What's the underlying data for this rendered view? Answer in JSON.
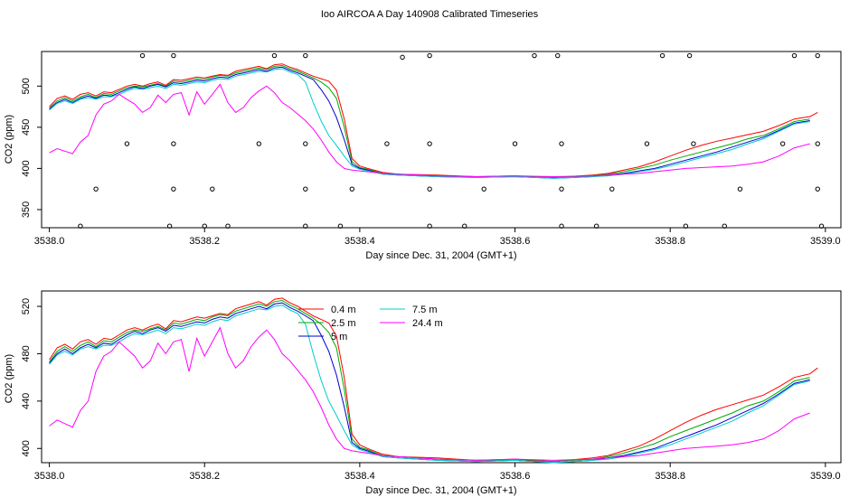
{
  "title": "Ioo AIRCOA A  Day 140908  Calibrated Timeseries",
  "chart_data": [
    {
      "type": "line",
      "xlabel": "Day since Dec. 31, 2004 (GMT+1)",
      "ylabel": "CO2 (ppm)",
      "xlim": [
        3537.99,
        3539.02
      ],
      "ylim": [
        328,
        542
      ],
      "xticks": [
        "3538.0",
        "3538.2",
        "3538.4",
        "3538.6",
        "3538.8",
        "3539.0"
      ],
      "xtick_values": [
        3538.0,
        3538.2,
        3538.4,
        3538.6,
        3538.8,
        3539.0
      ],
      "yticks": [
        "350",
        "400",
        "450",
        "500"
      ],
      "ytick_values": [
        350,
        400,
        450,
        500
      ],
      "series": [
        {
          "color": "#FF0000",
          "x": [
            3538.0,
            3538.01,
            3538.02,
            3538.03,
            3538.04,
            3538.05,
            3538.06,
            3538.07,
            3538.08,
            3538.09,
            3538.1,
            3538.11,
            3538.12,
            3538.13,
            3538.14,
            3538.15,
            3538.16,
            3538.17,
            3538.18,
            3538.19,
            3538.2,
            3538.21,
            3538.22,
            3538.23,
            3538.24,
            3538.25,
            3538.26,
            3538.27,
            3538.28,
            3538.29,
            3538.3,
            3538.31,
            3538.32,
            3538.33,
            3538.34,
            3538.35,
            3538.36,
            3538.37,
            3538.38,
            3538.39,
            3538.4,
            3538.41,
            3538.43,
            3538.45,
            3538.5,
            3538.55,
            3538.6,
            3538.65,
            3538.7,
            3538.72,
            3538.74,
            3538.76,
            3538.78,
            3538.8,
            3538.82,
            3538.84,
            3538.86,
            3538.88,
            3538.9,
            3538.92,
            3538.94,
            3538.96,
            3538.98,
            3538.99
          ],
          "y": [
            475,
            485,
            488,
            484,
            490,
            492,
            488,
            493,
            492,
            496,
            500,
            502,
            500,
            503,
            505,
            501,
            508,
            507,
            509,
            511,
            510,
            512,
            514,
            513,
            518,
            520,
            522,
            524,
            521,
            526,
            527,
            523,
            520,
            516,
            512,
            509,
            506,
            495,
            460,
            412,
            403,
            400,
            395,
            393,
            392,
            390,
            391,
            389,
            392,
            394,
            398,
            402,
            408,
            415,
            422,
            428,
            433,
            437,
            441,
            445,
            452,
            460,
            463,
            468
          ]
        },
        {
          "color": "#00AA00",
          "x": [
            3538.0,
            3538.01,
            3538.02,
            3538.03,
            3538.04,
            3538.05,
            3538.06,
            3538.07,
            3538.08,
            3538.09,
            3538.1,
            3538.11,
            3538.12,
            3538.13,
            3538.14,
            3538.15,
            3538.16,
            3538.17,
            3538.18,
            3538.19,
            3538.2,
            3538.21,
            3538.22,
            3538.23,
            3538.24,
            3538.25,
            3538.26,
            3538.27,
            3538.28,
            3538.29,
            3538.3,
            3538.31,
            3538.32,
            3538.33,
            3538.34,
            3538.35,
            3538.36,
            3538.37,
            3538.38,
            3538.39,
            3538.4,
            3538.41,
            3538.43,
            3538.45,
            3538.5,
            3538.55,
            3538.6,
            3538.65,
            3538.7,
            3538.72,
            3538.74,
            3538.76,
            3538.78,
            3538.8,
            3538.82,
            3538.84,
            3538.86,
            3538.88,
            3538.9,
            3538.92,
            3538.94,
            3538.96,
            3538.98
          ],
          "y": [
            473,
            482,
            486,
            482,
            487,
            490,
            486,
            491,
            490,
            494,
            498,
            500,
            499,
            501,
            503,
            500,
            506,
            505,
            507,
            509,
            508,
            511,
            513,
            512,
            516,
            518,
            520,
            522,
            520,
            524,
            525,
            521,
            518,
            514,
            510,
            505,
            498,
            485,
            450,
            408,
            401,
            399,
            394,
            393,
            391,
            390,
            390,
            389,
            391,
            393,
            396,
            400,
            404,
            410,
            415,
            420,
            425,
            430,
            436,
            440,
            448,
            457,
            460
          ]
        },
        {
          "color": "#0000CC",
          "x": [
            3538.0,
            3538.01,
            3538.02,
            3538.03,
            3538.04,
            3538.05,
            3538.06,
            3538.07,
            3538.08,
            3538.09,
            3538.1,
            3538.11,
            3538.12,
            3538.13,
            3538.14,
            3538.15,
            3538.16,
            3538.17,
            3538.18,
            3538.19,
            3538.2,
            3538.21,
            3538.22,
            3538.23,
            3538.24,
            3538.25,
            3538.26,
            3538.27,
            3538.28,
            3538.29,
            3538.3,
            3538.31,
            3538.32,
            3538.33,
            3538.34,
            3538.35,
            3538.36,
            3538.37,
            3538.38,
            3538.39,
            3538.4,
            3538.41,
            3538.43,
            3538.45,
            3538.5,
            3538.55,
            3538.6,
            3538.65,
            3538.7,
            3538.72,
            3538.74,
            3538.76,
            3538.78,
            3538.8,
            3538.82,
            3538.84,
            3538.86,
            3538.88,
            3538.9,
            3538.92,
            3538.94,
            3538.96,
            3538.98
          ],
          "y": [
            472,
            480,
            484,
            480,
            485,
            488,
            485,
            489,
            488,
            492,
            496,
            499,
            497,
            500,
            502,
            499,
            504,
            503,
            505,
            507,
            506,
            509,
            511,
            510,
            514,
            516,
            518,
            520,
            518,
            522,
            523,
            519,
            516,
            512,
            508,
            496,
            482,
            462,
            435,
            405,
            400,
            398,
            393,
            392,
            390,
            389,
            390,
            388,
            390,
            392,
            394,
            397,
            400,
            405,
            410,
            415,
            420,
            426,
            432,
            438,
            446,
            455,
            458
          ]
        },
        {
          "color": "#00CCCC",
          "x": [
            3538.0,
            3538.01,
            3538.02,
            3538.03,
            3538.04,
            3538.05,
            3538.06,
            3538.07,
            3538.08,
            3538.09,
            3538.1,
            3538.11,
            3538.12,
            3538.13,
            3538.14,
            3538.15,
            3538.16,
            3538.17,
            3538.18,
            3538.19,
            3538.2,
            3538.21,
            3538.22,
            3538.23,
            3538.24,
            3538.25,
            3538.26,
            3538.27,
            3538.28,
            3538.29,
            3538.3,
            3538.31,
            3538.32,
            3538.33,
            3538.34,
            3538.35,
            3538.36,
            3538.37,
            3538.38,
            3538.39,
            3538.4,
            3538.41,
            3538.43,
            3538.45,
            3538.5,
            3538.55,
            3538.6,
            3538.65,
            3538.7,
            3538.72,
            3538.74,
            3538.76,
            3538.78,
            3538.8,
            3538.82,
            3538.84,
            3538.86,
            3538.88,
            3538.9,
            3538.92,
            3538.94,
            3538.96,
            3538.98
          ],
          "y": [
            471,
            479,
            482,
            479,
            484,
            486,
            484,
            487,
            487,
            490,
            494,
            497,
            496,
            498,
            500,
            497,
            502,
            501,
            503,
            505,
            504,
            507,
            509,
            508,
            512,
            514,
            516,
            518,
            517,
            520,
            521,
            517,
            514,
            505,
            480,
            458,
            440,
            428,
            415,
            403,
            399,
            397,
            393,
            392,
            390,
            389,
            390,
            388,
            390,
            391,
            393,
            396,
            399,
            403,
            408,
            413,
            418,
            423,
            430,
            436,
            445,
            454,
            457
          ]
        },
        {
          "color": "#FF00FF",
          "x": [
            3538.0,
            3538.01,
            3538.02,
            3538.03,
            3538.04,
            3538.05,
            3538.06,
            3538.07,
            3538.08,
            3538.09,
            3538.1,
            3538.11,
            3538.12,
            3538.13,
            3538.14,
            3538.15,
            3538.16,
            3538.17,
            3538.18,
            3538.19,
            3538.2,
            3538.21,
            3538.22,
            3538.23,
            3538.24,
            3538.25,
            3538.26,
            3538.27,
            3538.28,
            3538.29,
            3538.3,
            3538.31,
            3538.32,
            3538.33,
            3538.34,
            3538.35,
            3538.36,
            3538.37,
            3538.38,
            3538.39,
            3538.4,
            3538.41,
            3538.43,
            3538.45,
            3538.5,
            3538.55,
            3538.6,
            3538.65,
            3538.7,
            3538.72,
            3538.74,
            3538.76,
            3538.78,
            3538.8,
            3538.82,
            3538.84,
            3538.86,
            3538.88,
            3538.9,
            3538.92,
            3538.94,
            3538.96,
            3538.98
          ],
          "y": [
            419,
            424,
            421,
            418,
            432,
            440,
            465,
            478,
            482,
            490,
            484,
            478,
            468,
            474,
            489,
            480,
            490,
            492,
            465,
            493,
            478,
            490,
            502,
            480,
            468,
            474,
            486,
            494,
            500,
            492,
            480,
            474,
            466,
            458,
            448,
            435,
            420,
            408,
            400,
            398,
            397,
            396,
            394,
            393,
            391,
            390,
            391,
            390,
            391,
            392,
            393,
            394,
            396,
            398,
            400,
            401,
            402,
            403,
            405,
            408,
            415,
            425,
            430
          ]
        }
      ],
      "markers": {
        "x": [
          3538.04,
          3538.06,
          3538.1,
          3538.12,
          3538.155,
          3538.16,
          3538.16,
          3538.16,
          3538.2,
          3538.21,
          3538.23,
          3538.27,
          3538.29,
          3538.33,
          3538.33,
          3538.33,
          3538.33,
          3538.375,
          3538.39,
          3538.435,
          3538.455,
          3538.49,
          3538.49,
          3538.49,
          3538.49,
          3538.535,
          3538.56,
          3538.6,
          3538.625,
          3538.655,
          3538.66,
          3538.66,
          3538.66,
          3538.705,
          3538.725,
          3538.77,
          3538.79,
          3538.82,
          3538.825,
          3538.83,
          3538.87,
          3538.89,
          3538.945,
          3538.96,
          3538.99,
          3538.99,
          3538.99,
          3538.995
        ],
        "y": [
          330,
          375,
          430,
          537,
          330,
          537,
          375,
          430,
          330,
          375,
          330,
          430,
          537,
          537,
          375,
          330,
          430,
          330,
          375,
          430,
          535,
          537,
          430,
          375,
          330,
          330,
          375,
          430,
          537,
          537,
          430,
          375,
          330,
          330,
          375,
          430,
          537,
          330,
          537,
          430,
          330,
          375,
          430,
          537,
          537,
          430,
          375,
          330
        ]
      }
    },
    {
      "type": "line",
      "xlabel": "Day since Dec. 31, 2004 (GMT+1)",
      "ylabel": "CO2 (ppm)",
      "xlim": [
        3537.99,
        3539.02
      ],
      "ylim": [
        388,
        533
      ],
      "xticks": [
        "3538.0",
        "3538.2",
        "3538.4",
        "3538.6",
        "3538.8",
        "3539.0"
      ],
      "xtick_values": [
        3538.0,
        3538.2,
        3538.4,
        3538.6,
        3538.8,
        3539.0
      ],
      "yticks": [
        "400",
        "440",
        "480",
        "520"
      ],
      "ytick_values": [
        400,
        440,
        480,
        520
      ],
      "legend": {
        "position": "top-center",
        "entries": [
          {
            "label": "0.4 m",
            "color": "#FF0000"
          },
          {
            "label": "2.5 m",
            "color": "#00AA00"
          },
          {
            "label": "5 m",
            "color": "#0000CC"
          },
          {
            "label": "7.5 m",
            "color": "#00CCCC"
          },
          {
            "label": "24.4 m",
            "color": "#FF00FF"
          }
        ]
      },
      "series_ref": "same as panel 1"
    }
  ]
}
